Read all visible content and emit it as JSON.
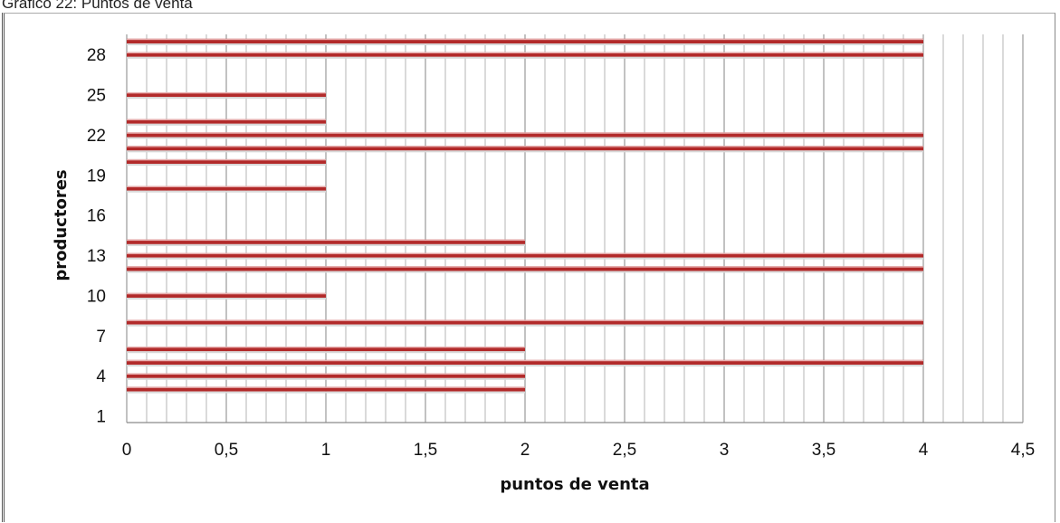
{
  "caption": "Gráfico 22: Puntos de venta",
  "chart_data": {
    "type": "bar",
    "orientation": "horizontal",
    "title": "",
    "xlabel": "puntos de venta",
    "ylabel": "productores",
    "xlim": [
      0,
      4.5
    ],
    "x_ticks": [
      "0",
      "0,5",
      "1",
      "1,5",
      "2",
      "2,5",
      "3",
      "3,5",
      "4",
      "4,5"
    ],
    "y_ticks": [
      "1",
      "4",
      "7",
      "10",
      "13",
      "16",
      "19",
      "22",
      "25",
      "28"
    ],
    "grid": "vertical",
    "bar_color": "#b22a2a",
    "categories": [
      1,
      2,
      3,
      4,
      5,
      6,
      7,
      8,
      9,
      10,
      11,
      12,
      13,
      14,
      15,
      16,
      17,
      18,
      19,
      20,
      21,
      22,
      23,
      24,
      25,
      26,
      27,
      28,
      29
    ],
    "values": [
      0,
      0,
      2,
      2,
      4,
      2,
      0,
      4,
      0,
      1,
      0,
      4,
      4,
      2,
      0,
      0,
      0,
      1,
      0,
      1,
      4,
      4,
      1,
      0,
      1,
      0,
      0,
      4,
      4
    ]
  }
}
